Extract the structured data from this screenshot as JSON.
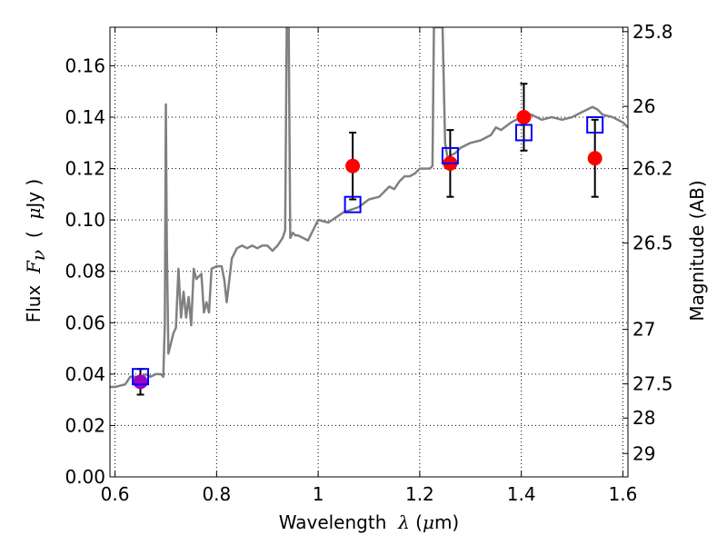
{
  "chart_data": {
    "type": "line",
    "xlim": [
      0.59,
      1.61
    ],
    "ylim": [
      0.0,
      0.175
    ],
    "grid": true,
    "x_ticks": [
      0.6,
      0.8,
      1.0,
      1.2,
      1.4,
      1.6
    ],
    "x_tick_labels": [
      "0.6",
      "0.8",
      "1",
      "1.2",
      "1.4",
      "1.6"
    ],
    "y_ticks": [
      0.0,
      0.02,
      0.04,
      0.06,
      0.08,
      0.1,
      0.12,
      0.14,
      0.16
    ],
    "y_tick_labels": [
      "0.00",
      "0.02",
      "0.04",
      "0.06",
      "0.08",
      "0.10",
      "0.12",
      "0.14",
      "0.16"
    ],
    "y2_tick_labels": [
      "25.8",
      "26",
      "26.2",
      "26.5",
      "27",
      "27.5",
      "28",
      "29"
    ],
    "y2_tick_flux": [
      0.1733,
      0.1442,
      0.12,
      0.091,
      0.0574,
      0.0362,
      0.0229,
      0.0091
    ],
    "xlabel": {
      "pre": "Wavelength  ",
      "sym": "λ",
      "post": " (",
      "mu": "μ",
      "end": "m)"
    },
    "ylabel": {
      "pre": "Flux  ",
      "sym": "F",
      "sub": "ν",
      "post": "  (  ",
      "mu": "μ",
      "end": "Jy )"
    },
    "y2label": "Magnitude (AB)",
    "colors": {
      "model": "#808080",
      "observed": "#ff0000",
      "observed_optical": "#a000c0",
      "model_band": "#0000ff",
      "errorbar": "#000000"
    },
    "series": [
      {
        "style": "line",
        "x": [
          0.59,
          0.6,
          0.62,
          0.63,
          0.64,
          0.65,
          0.66,
          0.67,
          0.68,
          0.69,
          0.695,
          0.698,
          0.7,
          0.702,
          0.705,
          0.71,
          0.715,
          0.72,
          0.725,
          0.73,
          0.735,
          0.74,
          0.745,
          0.75,
          0.755,
          0.76,
          0.765,
          0.77,
          0.775,
          0.78,
          0.785,
          0.79,
          0.8,
          0.81,
          0.815,
          0.82,
          0.83,
          0.84,
          0.85,
          0.86,
          0.87,
          0.88,
          0.89,
          0.9,
          0.91,
          0.92,
          0.93,
          0.935,
          0.938,
          0.94,
          0.942,
          0.945,
          0.95,
          0.955,
          0.96,
          0.97,
          0.98,
          0.99,
          1.0,
          1.02,
          1.05,
          1.08,
          1.1,
          1.12,
          1.14,
          1.15,
          1.16,
          1.17,
          1.18,
          1.19,
          1.2,
          1.21,
          1.22,
          1.225,
          1.228,
          1.23,
          1.24,
          1.245,
          1.25,
          1.255,
          1.26,
          1.27,
          1.28,
          1.3,
          1.32,
          1.34,
          1.35,
          1.36,
          1.38,
          1.4,
          1.42,
          1.44,
          1.46,
          1.48,
          1.5,
          1.52,
          1.54,
          1.55,
          1.56,
          1.58,
          1.6,
          1.61
        ],
        "y": [
          0.035,
          0.035,
          0.036,
          0.039,
          0.039,
          0.038,
          0.04,
          0.039,
          0.04,
          0.04,
          0.039,
          0.06,
          0.145,
          0.09,
          0.048,
          0.052,
          0.056,
          0.058,
          0.081,
          0.062,
          0.072,
          0.062,
          0.07,
          0.059,
          0.081,
          0.077,
          0.078,
          0.079,
          0.064,
          0.068,
          0.064,
          0.081,
          0.082,
          0.082,
          0.077,
          0.068,
          0.085,
          0.089,
          0.09,
          0.089,
          0.09,
          0.089,
          0.09,
          0.09,
          0.088,
          0.09,
          0.093,
          0.096,
          0.175,
          0.175,
          0.175,
          0.093,
          0.095,
          0.094,
          0.094,
          0.093,
          0.092,
          0.096,
          0.1,
          0.099,
          0.103,
          0.105,
          0.108,
          0.109,
          0.113,
          0.112,
          0.115,
          0.117,
          0.117,
          0.118,
          0.12,
          0.12,
          0.12,
          0.121,
          0.175,
          0.175,
          0.175,
          0.175,
          0.13,
          0.124,
          0.125,
          0.126,
          0.128,
          0.13,
          0.131,
          0.133,
          0.136,
          0.135,
          0.138,
          0.14,
          0.141,
          0.139,
          0.14,
          0.139,
          0.14,
          0.142,
          0.144,
          0.143,
          0.141,
          0.14,
          0.138,
          0.136
        ]
      },
      {
        "style": "errorbar-points",
        "x": [
          0.65,
          1.068,
          1.26,
          1.405,
          1.545
        ],
        "y": [
          0.037,
          0.121,
          0.122,
          0.14,
          0.124
        ],
        "yerr": [
          0.005,
          0.013,
          0.013,
          0.013,
          0.015
        ]
      },
      {
        "style": "open-squares",
        "x": [
          0.65,
          1.068,
          1.26,
          1.405,
          1.545
        ],
        "y": [
          0.039,
          0.106,
          0.125,
          0.134,
          0.137
        ]
      }
    ]
  }
}
